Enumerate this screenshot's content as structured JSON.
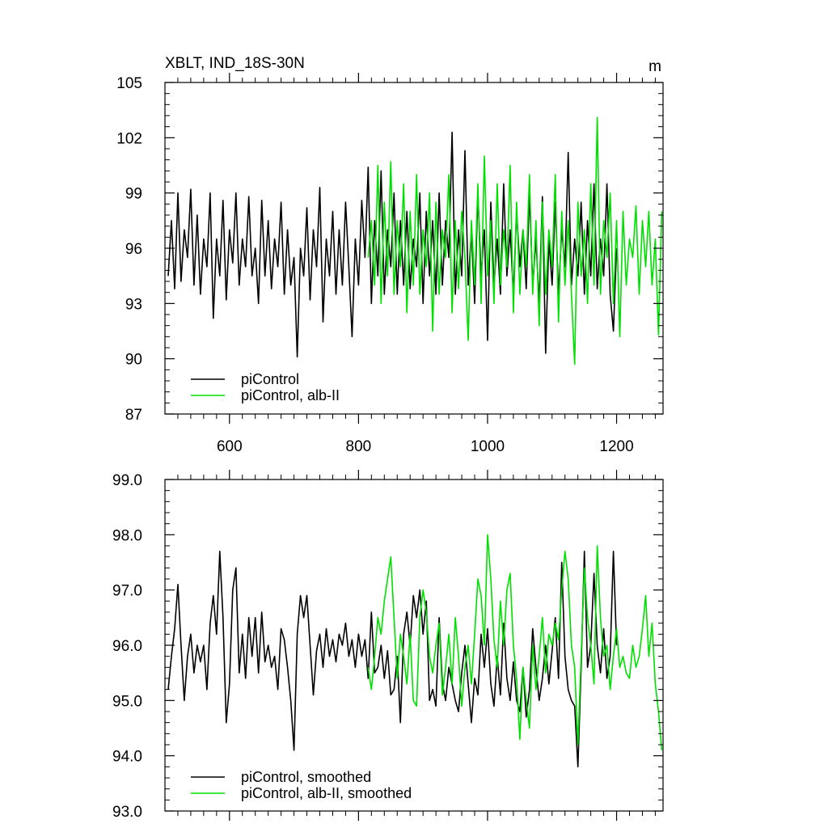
{
  "chart_data": [
    {
      "type": "line",
      "title": "XBLT, IND_18S-30N",
      "units": "m",
      "xlim": [
        500,
        1272
      ],
      "ylim": [
        87,
        105
      ],
      "yticks": [
        "105",
        "102",
        "99",
        "96",
        "93",
        "90",
        "87"
      ],
      "ytick_values": [
        105,
        102,
        99,
        96,
        93,
        90,
        87
      ],
      "xticks": [
        "600",
        "800",
        "1000",
        "1200"
      ],
      "xtick_values": [
        600,
        800,
        1000,
        1200
      ],
      "grid": false,
      "legend_position": "bottom-left",
      "series": [
        {
          "name": "piControl",
          "color": "#000000",
          "x": [
            505,
            510,
            515,
            520,
            525,
            530,
            535,
            540,
            545,
            550,
            555,
            560,
            565,
            570,
            575,
            580,
            585,
            590,
            595,
            600,
            605,
            610,
            615,
            620,
            625,
            630,
            635,
            640,
            645,
            650,
            655,
            660,
            665,
            670,
            675,
            680,
            685,
            690,
            695,
            700,
            705,
            710,
            715,
            720,
            725,
            730,
            735,
            740,
            745,
            750,
            755,
            760,
            765,
            770,
            775,
            780,
            785,
            790,
            795,
            800,
            805,
            810,
            815,
            820,
            825,
            830,
            835,
            840,
            845,
            850,
            855,
            860,
            865,
            870,
            875,
            880,
            885,
            890,
            895,
            900,
            905,
            910,
            915,
            920,
            925,
            930,
            935,
            940,
            945,
            950,
            955,
            960,
            965,
            970,
            975,
            980,
            985,
            990,
            995,
            1000,
            1005,
            1010,
            1015,
            1020,
            1025,
            1030,
            1035,
            1040,
            1045,
            1050,
            1055,
            1060,
            1065,
            1070,
            1075,
            1080,
            1085,
            1090,
            1095,
            1100,
            1105,
            1110,
            1115,
            1120,
            1125,
            1130,
            1135,
            1140,
            1145,
            1150,
            1155,
            1160,
            1165,
            1170,
            1175,
            1180,
            1185,
            1190,
            1195,
            1200
          ],
          "values": [
            94.5,
            97.5,
            93.8,
            99.0,
            94.2,
            97.0,
            95.5,
            99.2,
            94.0,
            97.8,
            93.5,
            96.5,
            95.0,
            99.0,
            92.2,
            96.5,
            94.5,
            98.6,
            93.2,
            97.0,
            95.2,
            99.0,
            94.0,
            96.5,
            95.0,
            98.8,
            94.5,
            96.0,
            93.0,
            98.6,
            94.5,
            97.5,
            93.8,
            96.5,
            95.0,
            98.5,
            93.5,
            97.0,
            94.0,
            95.5,
            90.1,
            96.0,
            94.5,
            98.2,
            93.2,
            97.0,
            95.0,
            99.3,
            92.0,
            96.5,
            94.5,
            98.0,
            93.5,
            97.0,
            94.0,
            98.5,
            95.0,
            91.2,
            96.5,
            94.0,
            98.6,
            95.5,
            100.4,
            93.0,
            97.5,
            94.5,
            100.2,
            93.5,
            97.0,
            95.0,
            99.0,
            93.5,
            97.5,
            94.0,
            98.0,
            93.8,
            96.5,
            95.0,
            99.0,
            93.0,
            98.0,
            94.5,
            97.5,
            93.5,
            99.0,
            94.0,
            97.5,
            95.5,
            102.3,
            93.5,
            97.0,
            94.5,
            101.3,
            94.0,
            97.0,
            93.0,
            99.0,
            94.5,
            97.0,
            91.0,
            98.5,
            94.0,
            96.5,
            93.5,
            99.5,
            94.5,
            97.0,
            93.5,
            98.0,
            95.0,
            97.0,
            93.8,
            99.0,
            94.0,
            96.5,
            93.0,
            98.8,
            90.3,
            96.5,
            94.0,
            98.5,
            93.5,
            97.0,
            95.0,
            101.2,
            94.0,
            96.5,
            94.5,
            98.5,
            93.5,
            97.5,
            94.5,
            99.5,
            93.8,
            96.5,
            94.5,
            99.5,
            93.5,
            91.5,
            96.0
          ],
          "start_note": ""
        },
        {
          "name": "piControl, alb-II",
          "color": "#00e000",
          "x": [
            815,
            820,
            825,
            830,
            835,
            840,
            845,
            850,
            855,
            860,
            865,
            870,
            875,
            880,
            885,
            890,
            895,
            900,
            905,
            910,
            915,
            920,
            925,
            930,
            935,
            940,
            945,
            950,
            955,
            960,
            965,
            970,
            975,
            980,
            985,
            990,
            995,
            1000,
            1005,
            1010,
            1015,
            1020,
            1025,
            1030,
            1035,
            1040,
            1045,
            1050,
            1055,
            1060,
            1065,
            1070,
            1075,
            1080,
            1085,
            1090,
            1095,
            1100,
            1105,
            1110,
            1115,
            1120,
            1125,
            1130,
            1135,
            1140,
            1145,
            1150,
            1155,
            1160,
            1165,
            1170,
            1175,
            1180,
            1185,
            1190,
            1195,
            1200,
            1205,
            1210,
            1215,
            1220,
            1225,
            1230,
            1235,
            1240,
            1245,
            1250,
            1255,
            1260,
            1265,
            1270
          ],
          "values": [
            95.5,
            97.5,
            94.0,
            100.5,
            93.0,
            98.5,
            94.5,
            100.7,
            93.5,
            97.5,
            95.0,
            99.5,
            92.5,
            98.0,
            94.0,
            100.0,
            93.5,
            97.0,
            95.0,
            99.0,
            91.5,
            98.5,
            93.5,
            97.0,
            95.5,
            100.0,
            92.5,
            97.5,
            93.8,
            98.0,
            95.5,
            91.0,
            97.5,
            94.0,
            99.5,
            93.0,
            101.0,
            94.5,
            97.5,
            93.0,
            99.5,
            94.0,
            97.0,
            95.0,
            100.5,
            92.5,
            98.5,
            93.5,
            97.0,
            95.0,
            100.0,
            93.5,
            97.5,
            91.8,
            98.5,
            93.5,
            97.0,
            95.0,
            100.0,
            92.0,
            98.0,
            94.0,
            97.5,
            93.5,
            89.7,
            98.5,
            94.5,
            97.0,
            93.0,
            99.5,
            94.0,
            103.1,
            93.5,
            97.5,
            95.5,
            99.0,
            93.0,
            97.5,
            91.2,
            98.0,
            94.0,
            96.5,
            95.5,
            98.3,
            93.5,
            97.5,
            95.0,
            98.0,
            94.0,
            96.5,
            91.3,
            98.0
          ],
          "start_note": ""
        }
      ]
    },
    {
      "type": "line",
      "title": "",
      "xlim": [
        500,
        1272
      ],
      "ylim": [
        93.0,
        99.0
      ],
      "yticks": [
        "99.0",
        "98.0",
        "97.0",
        "96.0",
        "95.0",
        "94.0",
        "93.0"
      ],
      "ytick_values": [
        99,
        98,
        97,
        96,
        95,
        94,
        93
      ],
      "xticks": [],
      "xtick_values": [
        600,
        800,
        1000,
        1200
      ],
      "grid": false,
      "legend_position": "bottom-left",
      "series": [
        {
          "name": "piControl, smoothed",
          "color": "#000000",
          "x": [
            505,
            510,
            515,
            520,
            525,
            530,
            535,
            540,
            545,
            550,
            555,
            560,
            565,
            570,
            575,
            580,
            585,
            590,
            595,
            600,
            605,
            610,
            615,
            620,
            625,
            630,
            635,
            640,
            645,
            650,
            655,
            660,
            665,
            670,
            675,
            680,
            685,
            690,
            695,
            700,
            705,
            710,
            715,
            720,
            725,
            730,
            735,
            740,
            745,
            750,
            755,
            760,
            765,
            770,
            775,
            780,
            785,
            790,
            795,
            800,
            805,
            810,
            815,
            820,
            825,
            830,
            835,
            840,
            845,
            850,
            855,
            860,
            865,
            870,
            875,
            880,
            885,
            890,
            895,
            900,
            905,
            910,
            915,
            920,
            925,
            930,
            935,
            940,
            945,
            950,
            955,
            960,
            965,
            970,
            975,
            980,
            985,
            990,
            995,
            1000,
            1005,
            1010,
            1015,
            1020,
            1025,
            1030,
            1035,
            1040,
            1045,
            1050,
            1055,
            1060,
            1065,
            1070,
            1075,
            1080,
            1085,
            1090,
            1095,
            1100,
            1105,
            1110,
            1115,
            1120,
            1125,
            1130,
            1135,
            1140,
            1145,
            1150,
            1155,
            1160,
            1165,
            1170,
            1175,
            1180,
            1185,
            1190,
            1195,
            1200
          ],
          "values": [
            95.2,
            95.8,
            96.3,
            97.1,
            96.0,
            95.0,
            95.8,
            96.2,
            95.5,
            96.0,
            95.7,
            96.0,
            95.2,
            96.4,
            96.9,
            96.2,
            97.7,
            96.5,
            94.6,
            95.3,
            97.0,
            97.4,
            95.5,
            96.2,
            95.4,
            96.5,
            95.8,
            96.5,
            95.5,
            96.6,
            95.7,
            96.0,
            95.6,
            95.8,
            95.2,
            96.3,
            96.1,
            95.6,
            95.0,
            94.1,
            96.2,
            96.9,
            96.5,
            96.9,
            96.0,
            95.1,
            95.9,
            96.2,
            95.6,
            96.3,
            95.8,
            96.1,
            95.7,
            96.2,
            96.0,
            96.4,
            95.8,
            96.1,
            95.6,
            96.2,
            95.8,
            96.1,
            95.4,
            96.6,
            95.5,
            95.6,
            96.0,
            95.4,
            95.9,
            95.1,
            95.2,
            95.8,
            94.6,
            96.2,
            96.6,
            96.0,
            96.9,
            96.5,
            97.0,
            96.2,
            96.8,
            95.0,
            95.2,
            94.9,
            96.5,
            95.3,
            95.0,
            95.6,
            95.3,
            95.0,
            94.8,
            95.5,
            96.0,
            95.3,
            94.6,
            95.4,
            95.1,
            96.2,
            95.6,
            96.3,
            95.3,
            94.9,
            95.8,
            95.1,
            96.4,
            95.4,
            95.0,
            95.7,
            95.0,
            94.8,
            95.6,
            94.7,
            95.2,
            96.3,
            95.6,
            95.0,
            95.4,
            96.0,
            95.3,
            95.9,
            96.5,
            95.4,
            97.5,
            95.8,
            95.2,
            95.0,
            94.9,
            93.8,
            95.6,
            97.7,
            95.6,
            96.0,
            97.3,
            96.0,
            95.5,
            96.3,
            95.4,
            95.8,
            97.7,
            96.0
          ],
          "start_note": ""
        },
        {
          "name": "piControl, alb-II, smoothed",
          "color": "#00e000",
          "x": [
            815,
            820,
            825,
            830,
            835,
            840,
            845,
            850,
            855,
            860,
            865,
            870,
            875,
            880,
            885,
            890,
            895,
            900,
            905,
            910,
            915,
            920,
            925,
            930,
            935,
            940,
            945,
            950,
            955,
            960,
            965,
            970,
            975,
            980,
            985,
            990,
            995,
            1000,
            1005,
            1010,
            1015,
            1020,
            1025,
            1030,
            1035,
            1040,
            1045,
            1050,
            1055,
            1060,
            1065,
            1070,
            1075,
            1080,
            1085,
            1090,
            1095,
            1100,
            1105,
            1110,
            1115,
            1120,
            1125,
            1130,
            1135,
            1140,
            1145,
            1150,
            1155,
            1160,
            1165,
            1170,
            1175,
            1180,
            1185,
            1190,
            1195,
            1200,
            1205,
            1210,
            1215,
            1220,
            1225,
            1230,
            1235,
            1240,
            1245,
            1250,
            1255,
            1260,
            1265,
            1270
          ],
          "values": [
            95.6,
            95.2,
            95.8,
            96.5,
            96.2,
            96.8,
            97.2,
            97.6,
            96.5,
            95.4,
            96.2,
            95.8,
            95.3,
            96.2,
            95.0,
            94.9,
            96.5,
            97.0,
            96.6,
            95.8,
            95.5,
            96.0,
            96.4,
            95.1,
            95.6,
            96.2,
            95.3,
            96.5,
            95.8,
            94.9,
            95.6,
            96.0,
            95.3,
            96.2,
            97.2,
            96.9,
            96.0,
            98.0,
            97.2,
            96.1,
            95.6,
            96.8,
            96.0,
            97.0,
            97.3,
            96.0,
            95.4,
            94.3,
            95.6,
            95.0,
            94.5,
            96.0,
            95.2,
            95.8,
            96.5,
            95.5,
            96.2,
            96.0,
            96.4,
            96.1,
            97.0,
            97.7,
            97.2,
            96.0,
            95.6,
            94.2,
            95.8,
            97.4,
            96.5,
            96.0,
            95.3,
            97.8,
            96.5,
            95.8,
            96.0,
            95.2,
            95.8,
            96.3,
            95.6,
            95.8,
            95.5,
            95.4,
            96.0,
            95.6,
            95.8,
            96.3,
            96.9,
            95.8,
            96.4,
            95.3,
            94.8,
            94.1
          ],
          "start_note": ""
        }
      ]
    }
  ]
}
